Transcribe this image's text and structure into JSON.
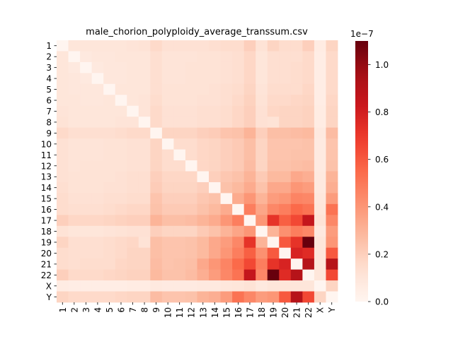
{
  "chart_data": {
    "type": "heatmap",
    "title": "male_chorion_polyploidy_average_transsum.csv",
    "xlabel": "",
    "ylabel": "",
    "labels": [
      "1",
      "2",
      "3",
      "4",
      "5",
      "6",
      "7",
      "8",
      "9",
      "10",
      "11",
      "12",
      "13",
      "14",
      "15",
      "16",
      "17",
      "18",
      "19",
      "20",
      "21",
      "22",
      "X",
      "Y"
    ],
    "colorscale": "Reds",
    "vmin": 0.0,
    "vmax": 1.1e-07,
    "colorbar_ticks": [
      "0.0",
      "0.2",
      "0.4",
      "0.6",
      "0.8",
      "1.0"
    ],
    "colorbar_tick_values": [
      0.0,
      2e-08,
      4e-08,
      6e-08,
      8e-08,
      1e-07
    ],
    "colorbar_exponent": "1e−7",
    "values": [
      [
        0.0,
        0.1,
        0.1,
        0.1,
        0.1,
        0.1,
        0.11,
        0.12,
        0.16,
        0.13,
        0.13,
        0.13,
        0.13,
        0.14,
        0.15,
        0.15,
        0.2,
        0.12,
        0.18,
        0.15,
        0.15,
        0.2,
        0.06,
        0.18
      ],
      [
        0.1,
        0.0,
        0.08,
        0.09,
        0.09,
        0.1,
        0.1,
        0.1,
        0.14,
        0.11,
        0.11,
        0.11,
        0.12,
        0.12,
        0.13,
        0.14,
        0.17,
        0.1,
        0.14,
        0.14,
        0.14,
        0.16,
        0.05,
        0.16
      ],
      [
        0.1,
        0.08,
        0.0,
        0.08,
        0.09,
        0.09,
        0.1,
        0.1,
        0.14,
        0.11,
        0.11,
        0.12,
        0.12,
        0.12,
        0.13,
        0.14,
        0.17,
        0.1,
        0.14,
        0.14,
        0.15,
        0.16,
        0.05,
        0.16
      ],
      [
        0.1,
        0.09,
        0.08,
        0.0,
        0.09,
        0.09,
        0.1,
        0.1,
        0.14,
        0.11,
        0.11,
        0.12,
        0.12,
        0.12,
        0.13,
        0.14,
        0.17,
        0.1,
        0.14,
        0.14,
        0.15,
        0.16,
        0.05,
        0.16
      ],
      [
        0.1,
        0.09,
        0.09,
        0.09,
        0.0,
        0.1,
        0.1,
        0.1,
        0.14,
        0.12,
        0.12,
        0.12,
        0.12,
        0.13,
        0.14,
        0.15,
        0.18,
        0.11,
        0.15,
        0.15,
        0.15,
        0.17,
        0.05,
        0.16
      ],
      [
        0.1,
        0.1,
        0.09,
        0.09,
        0.1,
        0.0,
        0.1,
        0.11,
        0.15,
        0.12,
        0.12,
        0.12,
        0.13,
        0.13,
        0.14,
        0.16,
        0.19,
        0.12,
        0.16,
        0.16,
        0.17,
        0.18,
        0.05,
        0.17
      ],
      [
        0.11,
        0.1,
        0.1,
        0.1,
        0.1,
        0.1,
        0.0,
        0.11,
        0.16,
        0.13,
        0.13,
        0.13,
        0.14,
        0.14,
        0.15,
        0.17,
        0.2,
        0.13,
        0.17,
        0.18,
        0.18,
        0.19,
        0.06,
        0.18
      ],
      [
        0.12,
        0.1,
        0.1,
        0.1,
        0.1,
        0.11,
        0.11,
        0.0,
        0.16,
        0.13,
        0.13,
        0.13,
        0.14,
        0.14,
        0.15,
        0.17,
        0.2,
        0.13,
        0.12,
        0.18,
        0.18,
        0.19,
        0.06,
        0.18
      ],
      [
        0.16,
        0.14,
        0.14,
        0.14,
        0.14,
        0.15,
        0.16,
        0.16,
        0.0,
        0.18,
        0.18,
        0.18,
        0.2,
        0.21,
        0.24,
        0.25,
        0.3,
        0.2,
        0.26,
        0.26,
        0.27,
        0.28,
        0.08,
        0.27
      ],
      [
        0.13,
        0.11,
        0.11,
        0.11,
        0.12,
        0.12,
        0.13,
        0.13,
        0.18,
        0.0,
        0.15,
        0.15,
        0.17,
        0.18,
        0.2,
        0.22,
        0.26,
        0.18,
        0.24,
        0.24,
        0.24,
        0.25,
        0.07,
        0.24
      ],
      [
        0.13,
        0.11,
        0.11,
        0.11,
        0.12,
        0.12,
        0.13,
        0.13,
        0.18,
        0.15,
        0.0,
        0.15,
        0.17,
        0.18,
        0.2,
        0.22,
        0.26,
        0.18,
        0.24,
        0.24,
        0.25,
        0.25,
        0.07,
        0.24
      ],
      [
        0.13,
        0.11,
        0.12,
        0.12,
        0.12,
        0.12,
        0.13,
        0.13,
        0.18,
        0.15,
        0.15,
        0.0,
        0.17,
        0.18,
        0.2,
        0.22,
        0.27,
        0.18,
        0.25,
        0.25,
        0.26,
        0.27,
        0.07,
        0.25
      ],
      [
        0.13,
        0.12,
        0.12,
        0.12,
        0.12,
        0.13,
        0.14,
        0.14,
        0.2,
        0.17,
        0.17,
        0.17,
        0.0,
        0.2,
        0.23,
        0.25,
        0.3,
        0.22,
        0.28,
        0.28,
        0.34,
        0.32,
        0.08,
        0.3
      ],
      [
        0.14,
        0.12,
        0.12,
        0.12,
        0.13,
        0.13,
        0.14,
        0.14,
        0.21,
        0.18,
        0.18,
        0.18,
        0.2,
        0.0,
        0.25,
        0.28,
        0.33,
        0.25,
        0.34,
        0.34,
        0.4,
        0.38,
        0.08,
        0.32
      ],
      [
        0.15,
        0.13,
        0.13,
        0.13,
        0.14,
        0.14,
        0.15,
        0.15,
        0.24,
        0.2,
        0.2,
        0.2,
        0.23,
        0.25,
        0.0,
        0.33,
        0.4,
        0.3,
        0.38,
        0.4,
        0.46,
        0.45,
        0.09,
        0.38
      ],
      [
        0.15,
        0.14,
        0.14,
        0.14,
        0.15,
        0.16,
        0.17,
        0.17,
        0.25,
        0.22,
        0.22,
        0.22,
        0.25,
        0.28,
        0.33,
        0.0,
        0.48,
        0.35,
        0.45,
        0.48,
        0.55,
        0.52,
        0.1,
        0.52
      ],
      [
        0.2,
        0.17,
        0.17,
        0.17,
        0.18,
        0.19,
        0.2,
        0.2,
        0.3,
        0.26,
        0.26,
        0.27,
        0.3,
        0.33,
        0.4,
        0.48,
        0.0,
        0.4,
        0.72,
        0.58,
        0.65,
        0.85,
        0.12,
        0.45
      ],
      [
        0.12,
        0.1,
        0.1,
        0.1,
        0.11,
        0.12,
        0.13,
        0.13,
        0.2,
        0.18,
        0.18,
        0.18,
        0.22,
        0.25,
        0.3,
        0.35,
        0.4,
        0.0,
        0.3,
        0.42,
        0.48,
        0.45,
        0.08,
        0.38
      ],
      [
        0.18,
        0.14,
        0.14,
        0.14,
        0.15,
        0.16,
        0.17,
        0.12,
        0.26,
        0.24,
        0.24,
        0.25,
        0.28,
        0.34,
        0.38,
        0.45,
        0.72,
        0.3,
        0.0,
        0.6,
        0.72,
        1.1,
        0.1,
        0.4
      ],
      [
        0.15,
        0.14,
        0.14,
        0.14,
        0.15,
        0.16,
        0.18,
        0.18,
        0.26,
        0.24,
        0.24,
        0.25,
        0.28,
        0.34,
        0.4,
        0.48,
        0.58,
        0.42,
        0.6,
        0.0,
        0.78,
        0.75,
        0.1,
        0.6
      ],
      [
        0.15,
        0.14,
        0.15,
        0.15,
        0.15,
        0.17,
        0.18,
        0.18,
        0.27,
        0.24,
        0.25,
        0.26,
        0.34,
        0.4,
        0.46,
        0.55,
        0.65,
        0.48,
        0.72,
        0.78,
        0.0,
        0.9,
        0.1,
        0.9
      ],
      [
        0.2,
        0.16,
        0.16,
        0.16,
        0.17,
        0.18,
        0.19,
        0.19,
        0.28,
        0.25,
        0.25,
        0.27,
        0.32,
        0.38,
        0.45,
        0.52,
        0.85,
        0.45,
        1.1,
        0.75,
        0.9,
        0.0,
        0.1,
        0.65
      ],
      [
        0.06,
        0.05,
        0.05,
        0.05,
        0.05,
        0.05,
        0.06,
        0.06,
        0.08,
        0.07,
        0.07,
        0.07,
        0.08,
        0.08,
        0.09,
        0.1,
        0.12,
        0.08,
        0.1,
        0.1,
        0.1,
        0.1,
        0.0,
        0.18
      ],
      [
        0.18,
        0.16,
        0.16,
        0.16,
        0.16,
        0.17,
        0.18,
        0.18,
        0.27,
        0.24,
        0.24,
        0.25,
        0.3,
        0.32,
        0.38,
        0.52,
        0.45,
        0.38,
        0.4,
        0.6,
        0.9,
        0.65,
        0.18,
        0.0
      ]
    ]
  }
}
